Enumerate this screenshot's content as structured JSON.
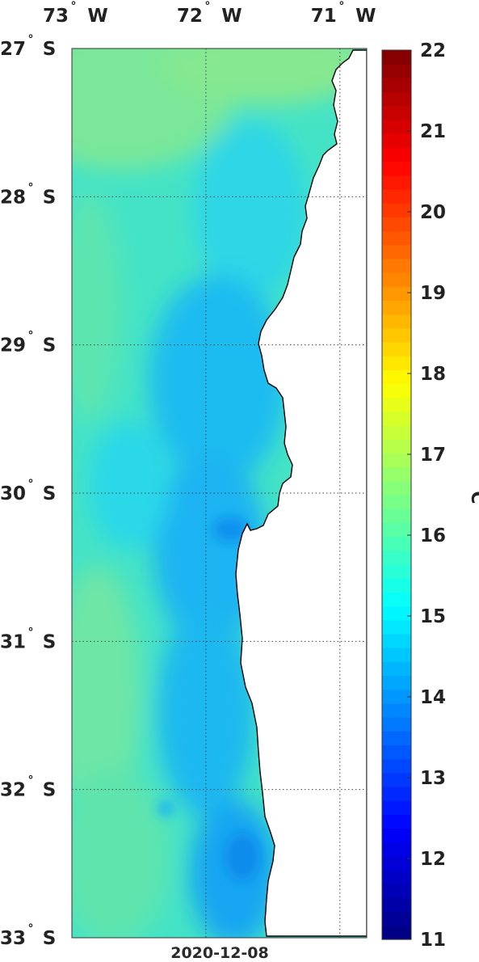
{
  "map": {
    "date": "2020-12-08",
    "variable_unit": "°C",
    "lon_labels": [
      {
        "value": -73,
        "deg": "73",
        "hemi": "W"
      },
      {
        "value": -72,
        "deg": "72",
        "hemi": "W"
      },
      {
        "value": -71,
        "deg": "71",
        "hemi": "W"
      }
    ],
    "lat_labels": [
      {
        "value": -27,
        "deg": "27",
        "hemi": "S"
      },
      {
        "value": -28,
        "deg": "28",
        "hemi": "S"
      },
      {
        "value": -29,
        "deg": "29",
        "hemi": "S"
      },
      {
        "value": -30,
        "deg": "30",
        "hemi": "S"
      },
      {
        "value": -31,
        "deg": "31",
        "hemi": "S"
      },
      {
        "value": -32,
        "deg": "32",
        "hemi": "S"
      },
      {
        "value": -33,
        "deg": "33",
        "hemi": "S"
      }
    ],
    "lon_range": [
      -73,
      -70.8
    ],
    "lat_range": [
      -33,
      -27
    ],
    "gridlines": true,
    "colormap": "jet",
    "colorbar": {
      "min": 11,
      "max": 22,
      "ticks": [
        "11",
        "12",
        "13",
        "14",
        "15",
        "16",
        "17",
        "18",
        "19",
        "20",
        "21",
        "22"
      ],
      "placement": "right"
    },
    "land_color": "#ffffff",
    "coast_color": "#000000"
  }
}
